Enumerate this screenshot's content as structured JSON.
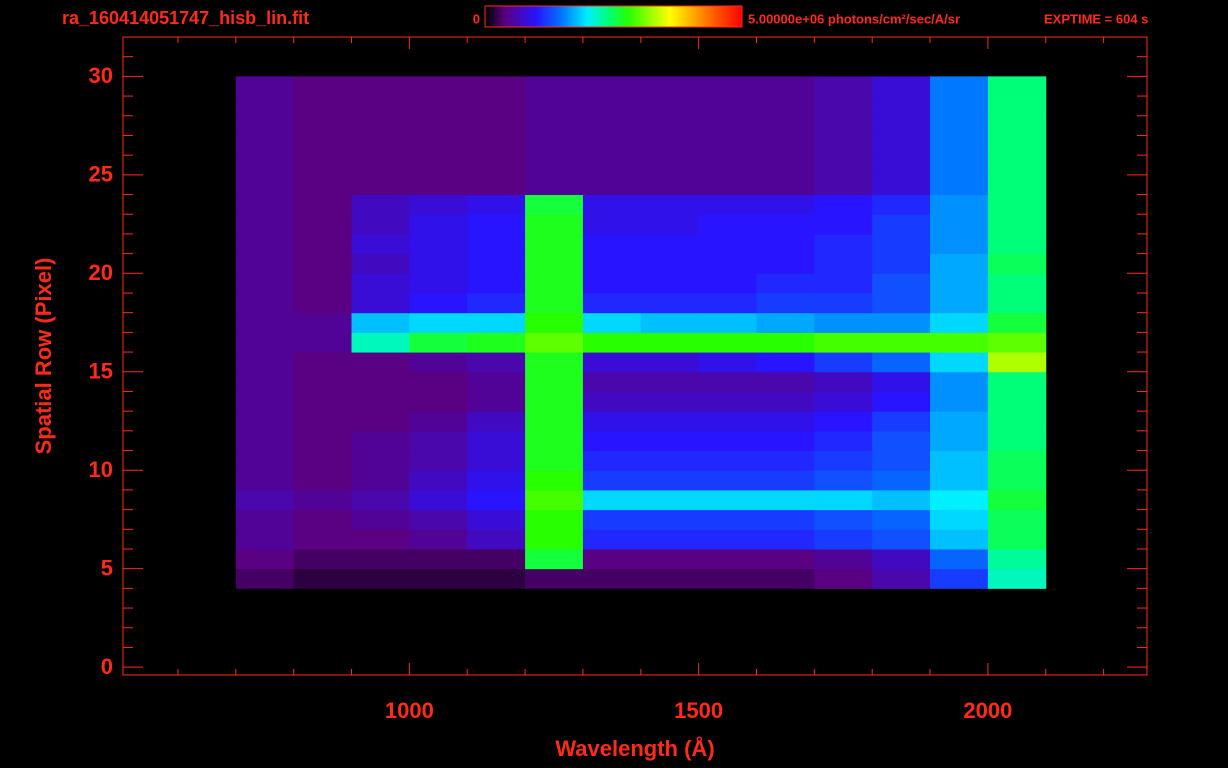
{
  "chart_data": {
    "type": "heatmap",
    "title": "ra_160414051747_hisb_lin.fit",
    "exposure": "EXPTIME = 604 s",
    "x_label": "Wavelength (Å)",
    "y_label": "Spatial Row (Pixel)",
    "xlim": [
      505,
      2275
    ],
    "ylim": [
      -0.4,
      32
    ],
    "xticks": [
      1000,
      1500,
      2000
    ],
    "xminorticks": [
      600,
      700,
      800,
      900,
      1100,
      1200,
      1300,
      1400,
      1600,
      1700,
      1800,
      1900,
      2100,
      2200
    ],
    "yticks": [
      0,
      5,
      10,
      15,
      20,
      25,
      30
    ],
    "yminorticks": [
      1,
      2,
      3,
      4,
      6,
      7,
      8,
      9,
      11,
      12,
      13,
      14,
      16,
      17,
      18,
      19,
      21,
      22,
      23,
      24,
      26,
      27,
      28,
      29,
      31
    ],
    "clim": [
      0,
      5000000
    ],
    "cticks": [
      0,
      {
        "value": 5000000,
        "label": "5.00000e+06 photons/cm²/sec/A/sr"
      }
    ],
    "axis_color": "#ff2a1a",
    "xbins": [
      700,
      800,
      900,
      1000,
      1100,
      1200,
      1300,
      1400,
      1500,
      1600,
      1700,
      1800,
      1900,
      2000,
      2100
    ],
    "ybins": [
      4,
      5,
      6,
      7,
      8,
      9,
      10,
      11,
      12,
      13,
      14,
      15,
      16,
      17,
      18,
      19,
      20,
      21,
      22,
      23,
      24,
      25,
      26,
      27,
      28,
      29,
      30
    ],
    "values": [
      [
        300000,
        200000,
        200000,
        200000,
        200000,
        300000,
        300000,
        300000,
        300000,
        300000,
        400000,
        600000,
        1200000,
        2200000
      ],
      [
        400000,
        300000,
        300000,
        300000,
        300000,
        2600000,
        400000,
        400000,
        400000,
        400000,
        500000,
        700000,
        1400000,
        2300000
      ],
      [
        500000,
        400000,
        400000,
        500000,
        700000,
        2800000,
        1100000,
        1100000,
        1100000,
        1100000,
        1200000,
        1300000,
        1800000,
        2500000
      ],
      [
        500000,
        400000,
        500000,
        600000,
        800000,
        2800000,
        1200000,
        1200000,
        1200000,
        1200000,
        1300000,
        1400000,
        1900000,
        2500000
      ],
      [
        600000,
        500000,
        600000,
        800000,
        1000000,
        2900000,
        1900000,
        1900000,
        1900000,
        1900000,
        1900000,
        1800000,
        2000000,
        2600000
      ],
      [
        500000,
        400000,
        500000,
        700000,
        900000,
        2800000,
        1200000,
        1200000,
        1200000,
        1200000,
        1300000,
        1400000,
        1800000,
        2500000
      ],
      [
        500000,
        400000,
        500000,
        600000,
        800000,
        2700000,
        1100000,
        1100000,
        1100000,
        1100000,
        1200000,
        1300000,
        1800000,
        2500000
      ],
      [
        500000,
        400000,
        500000,
        600000,
        800000,
        2700000,
        1000000,
        1000000,
        1000000,
        1000000,
        1100000,
        1300000,
        1700000,
        2400000
      ],
      [
        500000,
        400000,
        400000,
        500000,
        700000,
        2700000,
        900000,
        900000,
        900000,
        900000,
        1000000,
        1200000,
        1700000,
        2400000
      ],
      [
        500000,
        400000,
        400000,
        400000,
        500000,
        2700000,
        700000,
        700000,
        700000,
        700000,
        800000,
        1000000,
        1600000,
        2400000
      ],
      [
        500000,
        400000,
        400000,
        400000,
        500000,
        2700000,
        600000,
        600000,
        600000,
        600000,
        700000,
        900000,
        1600000,
        2400000
      ],
      [
        500000,
        400000,
        400000,
        500000,
        600000,
        2700000,
        800000,
        800000,
        900000,
        1000000,
        1200000,
        1400000,
        1900000,
        3300000
      ],
      [
        500000,
        500000,
        2200000,
        2600000,
        2700000,
        3000000,
        2800000,
        2800000,
        2800000,
        2800000,
        2900000,
        2900000,
        2900000,
        3000000
      ],
      [
        500000,
        500000,
        1800000,
        1900000,
        1900000,
        2800000,
        1900000,
        1800000,
        1800000,
        1700000,
        1600000,
        1600000,
        1900000,
        2600000
      ],
      [
        500000,
        400000,
        800000,
        1000000,
        1100000,
        2700000,
        1100000,
        1100000,
        1100000,
        1200000,
        1200000,
        1300000,
        1700000,
        2400000
      ],
      [
        500000,
        400000,
        800000,
        900000,
        1000000,
        2700000,
        1000000,
        1000000,
        1000000,
        1100000,
        1100000,
        1300000,
        1700000,
        2400000
      ],
      [
        500000,
        400000,
        700000,
        900000,
        1000000,
        2700000,
        1000000,
        1000000,
        1000000,
        1000000,
        1100000,
        1200000,
        1700000,
        2500000
      ],
      [
        500000,
        400000,
        800000,
        900000,
        1000000,
        2700000,
        1000000,
        1000000,
        1000000,
        1000000,
        1100000,
        1200000,
        1600000,
        2400000
      ],
      [
        500000,
        400000,
        700000,
        900000,
        1000000,
        2700000,
        900000,
        900000,
        1000000,
        1000000,
        1000000,
        1200000,
        1600000,
        2400000
      ],
      [
        500000,
        400000,
        700000,
        800000,
        900000,
        2600000,
        900000,
        900000,
        900000,
        900000,
        1000000,
        1100000,
        1600000,
        2400000
      ],
      [
        500000,
        400000,
        400000,
        400000,
        400000,
        500000,
        500000,
        500000,
        500000,
        500000,
        600000,
        800000,
        1500000,
        2400000
      ],
      [
        500000,
        400000,
        400000,
        400000,
        400000,
        500000,
        500000,
        500000,
        500000,
        500000,
        600000,
        800000,
        1500000,
        2400000
      ],
      [
        500000,
        400000,
        400000,
        400000,
        400000,
        500000,
        500000,
        500000,
        500000,
        500000,
        600000,
        800000,
        1500000,
        2400000
      ],
      [
        500000,
        400000,
        400000,
        400000,
        400000,
        500000,
        500000,
        500000,
        500000,
        500000,
        600000,
        800000,
        1500000,
        2400000
      ],
      [
        500000,
        400000,
        400000,
        400000,
        400000,
        500000,
        500000,
        500000,
        500000,
        500000,
        600000,
        800000,
        1500000,
        2400000
      ],
      [
        500000,
        400000,
        400000,
        400000,
        400000,
        500000,
        500000,
        500000,
        500000,
        500000,
        600000,
        800000,
        1500000,
        2400000
      ]
    ]
  }
}
